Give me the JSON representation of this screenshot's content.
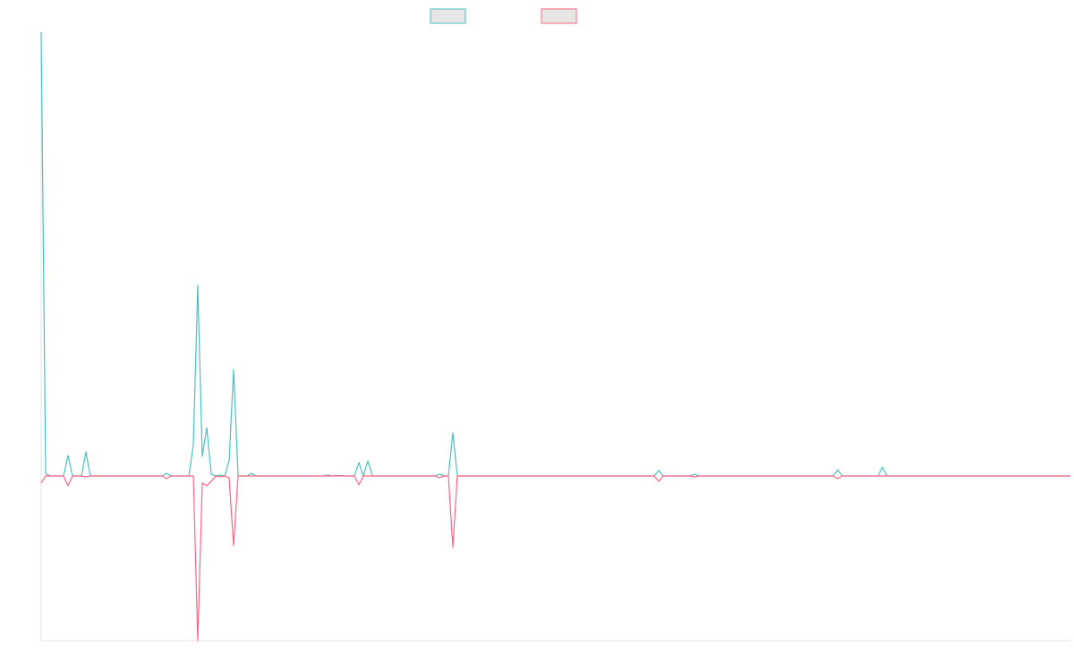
{
  "chart_data": {
    "type": "line",
    "categories": [
      null,
      null,
      null,
      null,
      null,
      null,
      null,
      null,
      null,
      null,
      null,
      null,
      null,
      null,
      null,
      null,
      null,
      null,
      null,
      null,
      null,
      null,
      null,
      null,
      null,
      null,
      null,
      null,
      null,
      null,
      null,
      null,
      null,
      null,
      null,
      null,
      null,
      null,
      null,
      null,
      null,
      null,
      null,
      null,
      null,
      null,
      null,
      null,
      null,
      null,
      null,
      null,
      null,
      null,
      null,
      null,
      null,
      null,
      null,
      null,
      null,
      null,
      null,
      null,
      null,
      null,
      null,
      null,
      null,
      null,
      null,
      null,
      null,
      null,
      null,
      null,
      null,
      null,
      null,
      null,
      null,
      null,
      null,
      null,
      null,
      null,
      null,
      null,
      null,
      null,
      null,
      null,
      null,
      null,
      null,
      null,
      null,
      null,
      null,
      null,
      null,
      null,
      null,
      null,
      null,
      null,
      null,
      null,
      null,
      null,
      null,
      null,
      null,
      null,
      null,
      null,
      null,
      null,
      null,
      null,
      null,
      null,
      null,
      null,
      null,
      null,
      null,
      null,
      null,
      null,
      null,
      null,
      null,
      null,
      null,
      null,
      null,
      null,
      null,
      null,
      null,
      null,
      null,
      null,
      null,
      null,
      null,
      null,
      null,
      null,
      null,
      null,
      null,
      null,
      null,
      null,
      null,
      null,
      null,
      null,
      null,
      null,
      null,
      null,
      null,
      null,
      null,
      null,
      null,
      null,
      null,
      null,
      null,
      null,
      null,
      null,
      null,
      null,
      null,
      null,
      null,
      null,
      null,
      null,
      null,
      null,
      null,
      null,
      null,
      null,
      null,
      null,
      null,
      null,
      null,
      null,
      null,
      null,
      null,
      null,
      null,
      null,
      null,
      null,
      null,
      null,
      null,
      null,
      null,
      null,
      null,
      null,
      null,
      null,
      null,
      null,
      null,
      null,
      null,
      null,
      null,
      null,
      null,
      null,
      null,
      null,
      null,
      null,
      null,
      null,
      null
    ],
    "series": [
      {
        "color": "#4bc0c0",
        "values": [
          100,
          0.5,
          0,
          0,
          0,
          0,
          4.6,
          0,
          0,
          0,
          5.4,
          0,
          0,
          0,
          0,
          0,
          0,
          0,
          0,
          0,
          0,
          0,
          0,
          0,
          0,
          0,
          0,
          0,
          0.6,
          0,
          0,
          0,
          0,
          0,
          7,
          43,
          4.4,
          10.9,
          0.4,
          0,
          0.2,
          0,
          3.4,
          24,
          0,
          0,
          0,
          0.6,
          0,
          0,
          0,
          0,
          0,
          0,
          0,
          0,
          0,
          0,
          0,
          0,
          0,
          0,
          0,
          0,
          0.2,
          0,
          0.1,
          0.1,
          0,
          0,
          0,
          3,
          0,
          3.4,
          0,
          0,
          0,
          0,
          0,
          0,
          0,
          0,
          0,
          0,
          0,
          0,
          0,
          0,
          0,
          0.4,
          0,
          0,
          9.7,
          0,
          0,
          0,
          0,
          0,
          0,
          0,
          0,
          0,
          0,
          0,
          0,
          0,
          0,
          0,
          0,
          0,
          0,
          0,
          0,
          0,
          0,
          0,
          0,
          0,
          0,
          0,
          0,
          0,
          0,
          0,
          0,
          0,
          0,
          0,
          0,
          0,
          0,
          0,
          0,
          0,
          0,
          0,
          0,
          0,
          1.2,
          0,
          0,
          0,
          0,
          0,
          0,
          0,
          0.4,
          0,
          0,
          0,
          0,
          0,
          0,
          0,
          0,
          0,
          0,
          0,
          0,
          0,
          0,
          0,
          0,
          0,
          0,
          0,
          0,
          0,
          0,
          0,
          0,
          0,
          0,
          0,
          0,
          0,
          0,
          0,
          1.4,
          0,
          0,
          0,
          0,
          0,
          0,
          0,
          0,
          0,
          2,
          0,
          0,
          0,
          0,
          0,
          0,
          0,
          0,
          0,
          0,
          0,
          0,
          0,
          0,
          0,
          0,
          0,
          0,
          0,
          0,
          0,
          0,
          0,
          0,
          0,
          0,
          0,
          0,
          0,
          0,
          0,
          0,
          0,
          0,
          0,
          0,
          0,
          0,
          0,
          0,
          0,
          0
        ]
      },
      {
        "color": "#ff6384",
        "values": [
          -1.6,
          0,
          0,
          0,
          0,
          0,
          -2.2,
          0,
          0,
          0,
          -0.2,
          0,
          0,
          0,
          0,
          0,
          0,
          0,
          0,
          0,
          0,
          0,
          0,
          0,
          0,
          0,
          0,
          0,
          -0.6,
          0,
          0,
          0,
          0,
          0,
          0,
          -37.1,
          -1.6,
          -2.2,
          -1.2,
          0,
          -0.2,
          0,
          -0.4,
          -15.7,
          0,
          0,
          0,
          0,
          0,
          0,
          0,
          0,
          0,
          0,
          0,
          0,
          0,
          0,
          0,
          0,
          0,
          0,
          0,
          0,
          0,
          0,
          0,
          0,
          0,
          0,
          0,
          -2,
          0,
          0,
          0,
          0,
          0,
          0,
          0,
          0,
          0,
          0,
          0,
          0,
          0,
          0,
          0,
          0,
          0,
          -0.4,
          0,
          0,
          -16.1,
          0,
          0,
          0,
          0,
          0,
          0,
          0,
          0,
          0,
          0,
          0,
          0,
          0,
          0,
          0,
          0,
          0,
          0,
          0,
          0,
          0,
          0,
          0,
          0,
          0,
          0,
          0,
          0,
          0,
          0,
          0,
          0,
          0,
          0,
          0,
          0,
          0,
          0,
          0,
          0,
          0,
          0,
          0,
          0,
          0,
          -1.2,
          0,
          0,
          0,
          0,
          0,
          0,
          0,
          -0.2,
          0,
          0,
          0,
          0,
          0,
          0,
          0,
          0,
          0,
          0,
          0,
          0,
          0,
          0,
          0,
          0,
          0,
          0,
          0,
          0,
          0,
          0,
          0,
          0,
          0,
          0,
          0,
          0,
          0,
          0,
          0,
          -0.6,
          0,
          0,
          0,
          0,
          0,
          0,
          0,
          0,
          0,
          0,
          0,
          0,
          0,
          0,
          0,
          0,
          0,
          0,
          0,
          0,
          0,
          0,
          0,
          0,
          0,
          0,
          0,
          0,
          0,
          0,
          0,
          0,
          0,
          0,
          0,
          0,
          0,
          0,
          0,
          0,
          0,
          0,
          0,
          0,
          0,
          0,
          0,
          0,
          0,
          0,
          0,
          0
        ]
      }
    ],
    "legend_fill": "#e6e6e6",
    "ylim": [
      -37.1,
      100
    ],
    "grid": false
  }
}
